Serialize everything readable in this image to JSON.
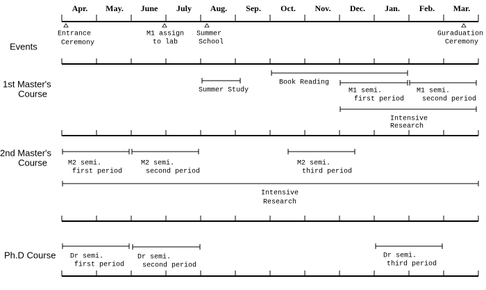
{
  "months": [
    "Apr.",
    "May.",
    "June",
    "July",
    "Aug.",
    "Sep.",
    "Oct.",
    "Nov.",
    "Dec.",
    "Jan.",
    "Feb.",
    "Mar."
  ],
  "sections": [
    {
      "label": [
        "Events"
      ],
      "items": [
        {
          "label": [
            "Entrance",
            "Ceremony"
          ]
        },
        {
          "label": [
            "M1  assign",
            "to lab"
          ]
        },
        {
          "label": [
            "Summer",
            "School"
          ]
        },
        {
          "label": [
            "Guraduation",
            "Ceremony"
          ]
        }
      ]
    },
    {
      "label": [
        "1st Master's",
        "Course"
      ],
      "items": [
        {
          "label": [
            "Summer Study"
          ]
        },
        {
          "label": [
            "Book Reading"
          ]
        },
        {
          "label": [
            "M1 semi.",
            "first period"
          ]
        },
        {
          "label": [
            "M1 semi.",
            "second period"
          ]
        },
        {
          "label": [
            "Intensive",
            "Research"
          ]
        }
      ]
    },
    {
      "label": [
        "2nd Master's",
        "Course"
      ],
      "items": [
        {
          "label": [
            "M2 semi.",
            "first period"
          ]
        },
        {
          "label": [
            "M2 semi.",
            "second period"
          ]
        },
        {
          "label": [
            "M2 semi.",
            "third period"
          ]
        },
        {
          "label": [
            "Intensive",
            "Research"
          ]
        }
      ]
    },
    {
      "label": [
        "Ph.D Course"
      ],
      "items": [
        {
          "label": [
            "Dr semi.",
            "first period"
          ]
        },
        {
          "label": [
            "Dr semi.",
            "second period"
          ]
        },
        {
          "label": [
            "Dr semi.",
            "third period"
          ]
        }
      ]
    }
  ]
}
